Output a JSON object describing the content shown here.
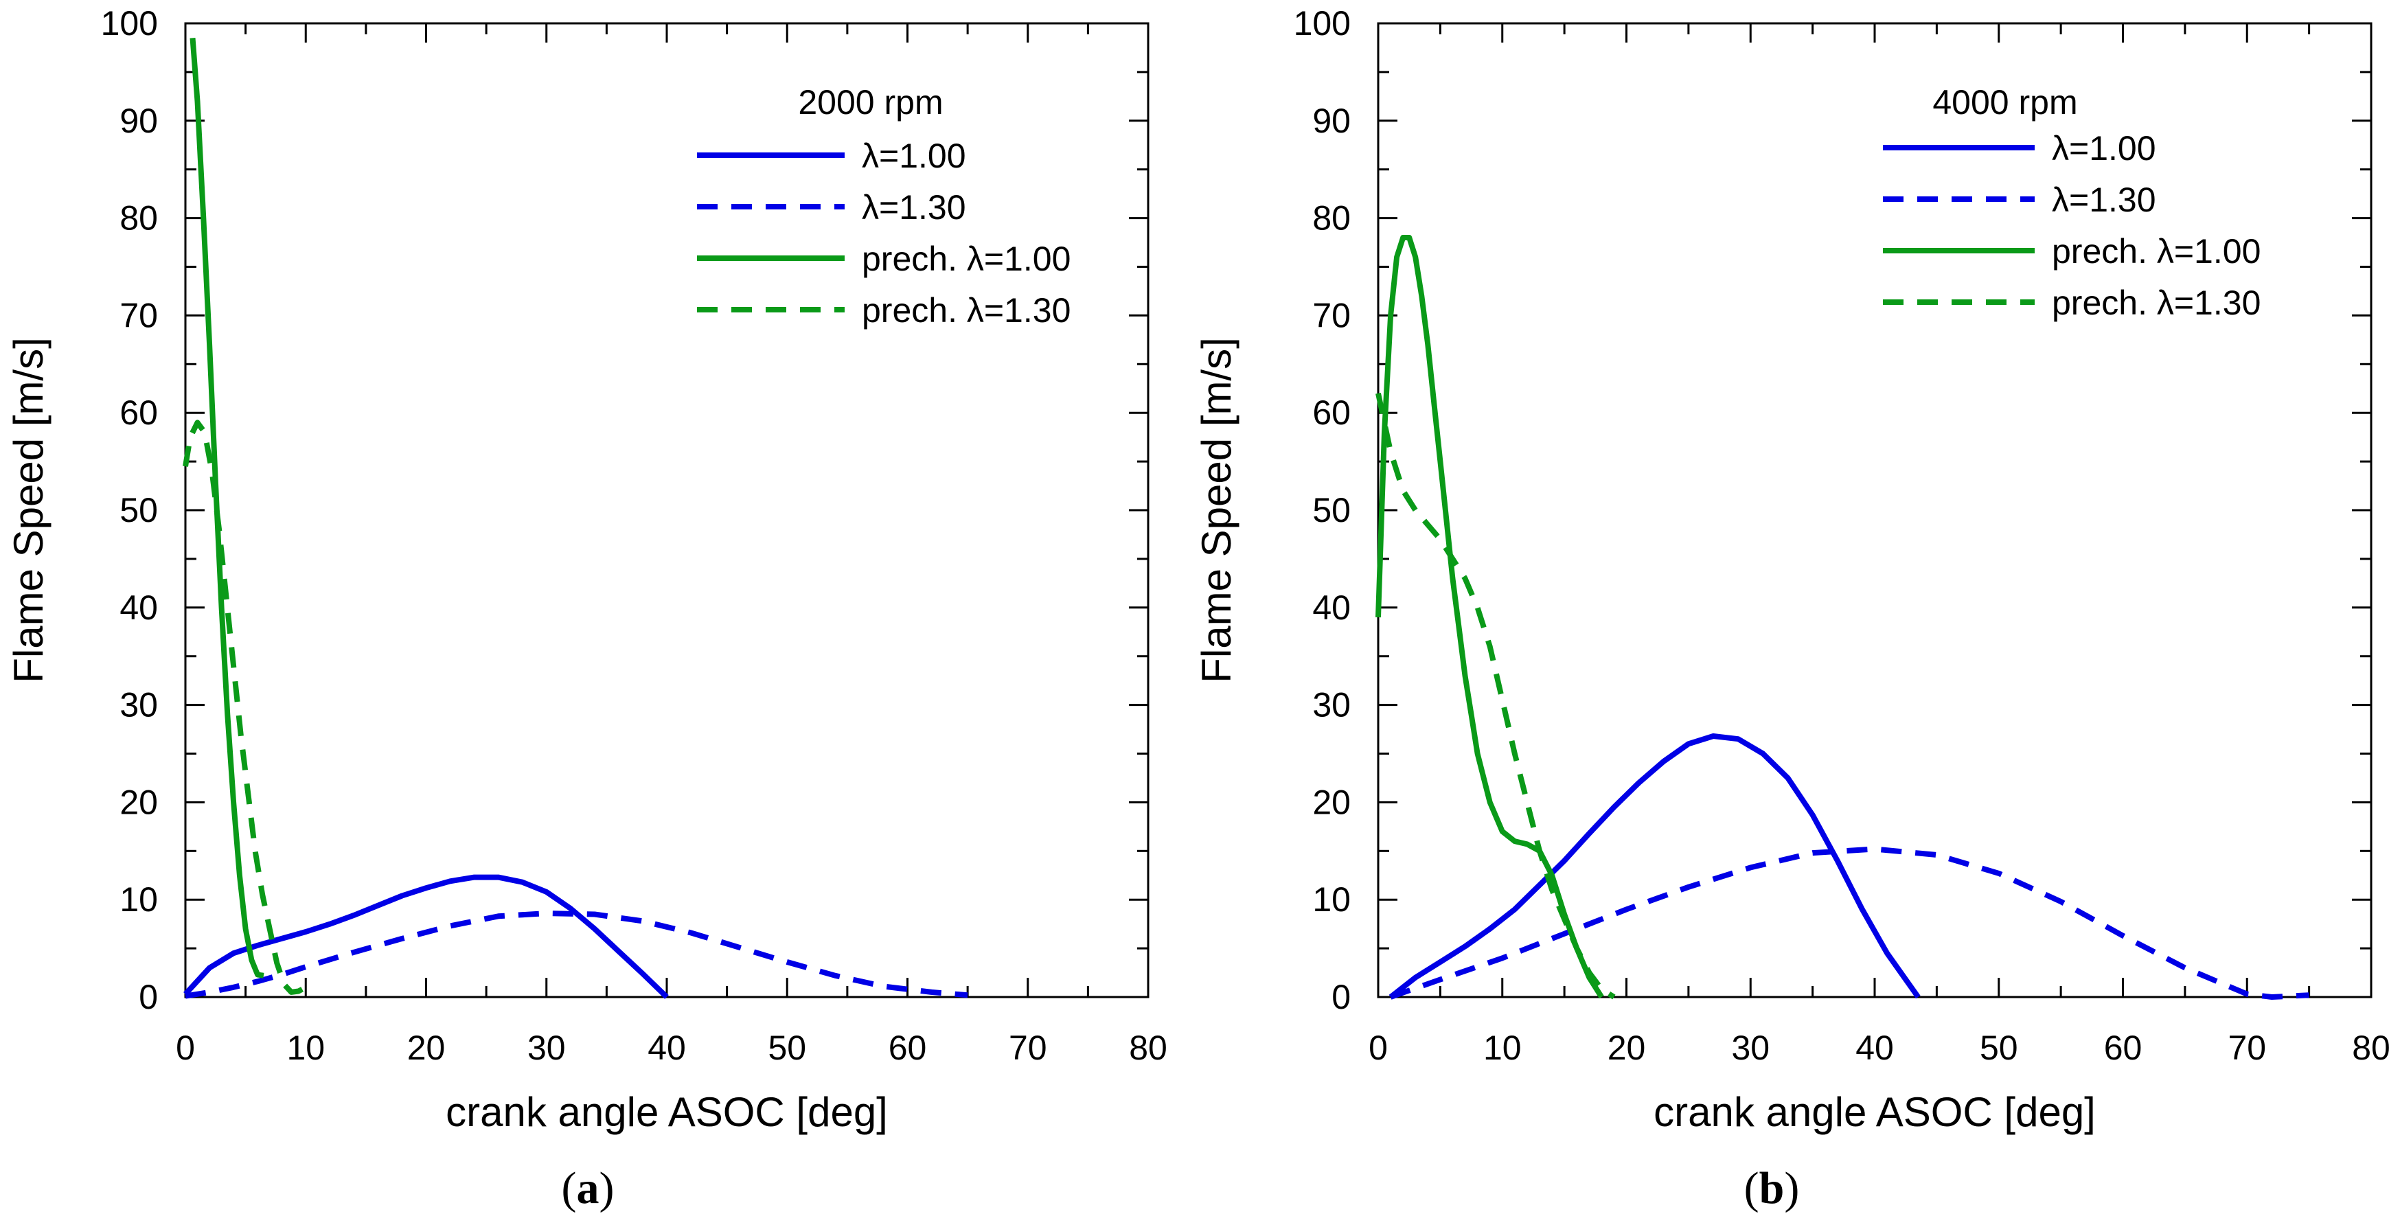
{
  "colors": {
    "blue": "#0000e6",
    "green": "#0a9a18",
    "axis": "#000000"
  },
  "chart_data": [
    {
      "type": "line",
      "panel_label": "a",
      "panel_paren_open": "(",
      "panel_paren_close": ")",
      "title": "2000 rpm",
      "xlabel": "crank angle ASOC [deg]",
      "ylabel": "Flame Speed [m/s]",
      "xlim": [
        0,
        80
      ],
      "ylim": [
        0,
        100
      ],
      "xticks": [
        "0",
        "10",
        "20",
        "30",
        "40",
        "50",
        "60",
        "70",
        "80"
      ],
      "yticks": [
        "0",
        "10",
        "20",
        "30",
        "40",
        "50",
        "60",
        "70",
        "80",
        "90",
        "100"
      ],
      "legend_title": "2000 rpm",
      "series": [
        {
          "name": "λ=1.00",
          "color": "blue",
          "dash": false,
          "x": [
            0,
            2,
            4,
            6,
            8,
            10,
            12,
            14,
            16,
            18,
            20,
            22,
            24,
            26,
            28,
            30,
            32,
            34,
            36,
            38,
            40
          ],
          "y": [
            0.3,
            3,
            4.5,
            5.3,
            6,
            6.7,
            7.5,
            8.4,
            9.4,
            10.4,
            11.2,
            11.9,
            12.3,
            12.3,
            11.8,
            10.8,
            9.1,
            7,
            4.7,
            2.4,
            0
          ]
        },
        {
          "name": "λ=1.30",
          "color": "blue",
          "dash": true,
          "x": [
            0,
            2,
            4,
            6,
            8,
            10,
            14,
            18,
            22,
            26,
            30,
            34,
            38,
            42,
            46,
            50,
            54,
            58,
            62,
            65
          ],
          "y": [
            0.1,
            0.5,
            1,
            1.6,
            2.3,
            3.1,
            4.6,
            6,
            7.3,
            8.3,
            8.6,
            8.5,
            7.8,
            6.6,
            5.1,
            3.6,
            2.2,
            1.1,
            0.5,
            0.2
          ]
        },
        {
          "name": "prech. λ=1.00",
          "color": "green",
          "dash": false,
          "x": [
            0.6,
            1.0,
            1.5,
            2.0,
            2.5,
            3.0,
            3.5,
            4.0,
            4.5,
            5.0,
            5.5,
            6.0,
            6.5
          ],
          "y": [
            98.5,
            92,
            80,
            67,
            53,
            40,
            29,
            20,
            12.5,
            7,
            3.8,
            2.3,
            2.2
          ]
        },
        {
          "name": "prech. λ=1.30",
          "color": "green",
          "dash": true,
          "x": [
            0,
            0.4,
            1.0,
            1.6,
            2.2,
            2.8,
            3.4,
            4.0,
            4.6,
            5.2,
            5.8,
            6.4,
            7.0,
            7.6,
            8.2,
            8.8,
            9.4,
            10.0
          ],
          "y": [
            54.5,
            57.5,
            59,
            58,
            54,
            48,
            41,
            34,
            27,
            21,
            15,
            10.5,
            7,
            3.5,
            1.3,
            0.5,
            0.6,
            1
          ]
        }
      ]
    },
    {
      "type": "line",
      "panel_label": "b",
      "panel_paren_open": "(",
      "panel_paren_close": ")",
      "title": "4000 rpm",
      "xlabel": "crank angle ASOC [deg]",
      "ylabel": "Flame Speed [m/s]",
      "xlim": [
        0,
        80
      ],
      "ylim": [
        0,
        100
      ],
      "xticks": [
        "0",
        "10",
        "20",
        "30",
        "40",
        "50",
        "60",
        "70",
        "80"
      ],
      "yticks": [
        "0",
        "10",
        "20",
        "30",
        "40",
        "50",
        "60",
        "70",
        "80",
        "90",
        "100"
      ],
      "legend_title": "4000 rpm",
      "series": [
        {
          "name": "λ=1.00",
          "color": "blue",
          "dash": false,
          "x": [
            1,
            3,
            5,
            7,
            9,
            11,
            13,
            15,
            17,
            19,
            21,
            23,
            25,
            27,
            29,
            31,
            33,
            35,
            37,
            39,
            41,
            43.5
          ],
          "y": [
            0,
            2,
            3.6,
            5.2,
            7,
            9,
            11.5,
            14,
            16.8,
            19.5,
            22,
            24.2,
            26,
            26.8,
            26.5,
            25,
            22.5,
            18.7,
            14,
            9,
            4.5,
            0
          ]
        },
        {
          "name": "λ=1.30",
          "color": "blue",
          "dash": true,
          "x": [
            1,
            5,
            10,
            15,
            20,
            25,
            30,
            35,
            40,
            45,
            50,
            55,
            60,
            65,
            70,
            72,
            75
          ],
          "y": [
            0,
            1.8,
            4,
            6.5,
            9,
            11.3,
            13.3,
            14.8,
            15.2,
            14.6,
            12.7,
            9.8,
            6.3,
            3,
            0.3,
            0,
            0.2
          ]
        },
        {
          "name": "prech. λ=1.00",
          "color": "green",
          "dash": false,
          "x": [
            0,
            0.5,
            1.0,
            1.5,
            2.0,
            2.5,
            3.0,
            3.5,
            4.0,
            4.5,
            5.0,
            5.5,
            6.0,
            6.5,
            7.0,
            7.5,
            8.0,
            9.0,
            10.0,
            11.0,
            12.0,
            13.0,
            14.0,
            15.0,
            16.0,
            17.0,
            18.0
          ],
          "y": [
            39,
            58,
            70,
            76,
            78,
            78,
            76,
            72,
            67,
            61,
            55,
            49,
            43,
            38,
            33,
            29,
            25,
            20,
            17,
            16,
            15.7,
            15,
            12.5,
            8.5,
            5,
            2,
            0
          ]
        },
        {
          "name": "prech. λ=1.30",
          "color": "green",
          "dash": true,
          "x": [
            0,
            0.5,
            1,
            2,
            3,
            4,
            5,
            6,
            7,
            8,
            9,
            10,
            11,
            12,
            13,
            14,
            15,
            16,
            17,
            18,
            19
          ],
          "y": [
            62,
            59,
            56,
            52,
            50,
            48.5,
            47,
            45,
            43,
            40,
            36,
            30.5,
            25,
            20,
            15,
            11,
            8,
            5,
            2.5,
            0.8,
            0
          ]
        }
      ]
    }
  ]
}
